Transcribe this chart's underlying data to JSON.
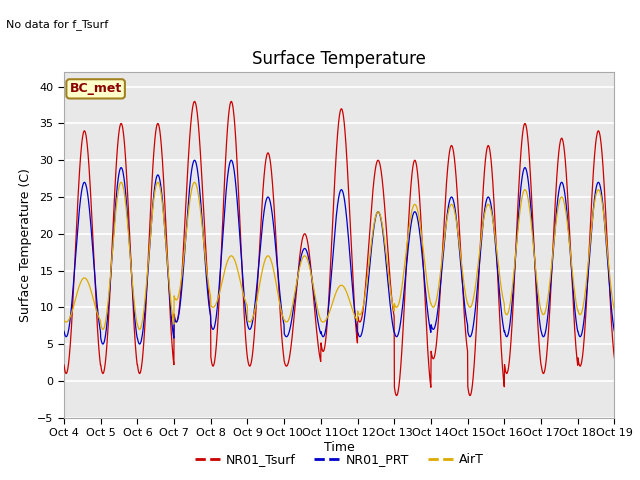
{
  "title": "Surface Temperature",
  "ylabel": "Surface Temperature (C)",
  "xlabel": "Time",
  "ylim": [
    -5,
    42
  ],
  "yticks": [
    -5,
    0,
    5,
    10,
    15,
    20,
    25,
    30,
    35,
    40
  ],
  "xtick_labels": [
    "Oct 4",
    "Oct 5",
    "Oct 6",
    "Oct 7",
    "Oct 8",
    "Oct 9",
    "Oct 10",
    "Oct 11",
    "Oct 12",
    "Oct 13",
    "Oct 14",
    "Oct 15",
    "Oct 16",
    "Oct 17",
    "Oct 18",
    "Oct 19"
  ],
  "annotation_text": "No data for f_Tsurf",
  "box_label": "BC_met",
  "box_facecolor": "#ffffcc",
  "box_edgecolor": "#a08020",
  "legend_labels": [
    "NR01_Tsurf",
    "NR01_PRT",
    "AirT"
  ],
  "legend_colors": [
    "#cc0000",
    "#0000cc",
    "#ddaa00"
  ],
  "line_colors_plot": [
    "#cc0000",
    "#0000cc",
    "#ddaa00"
  ],
  "plot_bg_color": "#e8e8e8",
  "fig_bg_color": "#ffffff",
  "grid_color": "#ffffff",
  "title_fontsize": 12,
  "label_fontsize": 9,
  "tick_fontsize": 8,
  "annotation_fontsize": 8,
  "legend_fontsize": 9
}
